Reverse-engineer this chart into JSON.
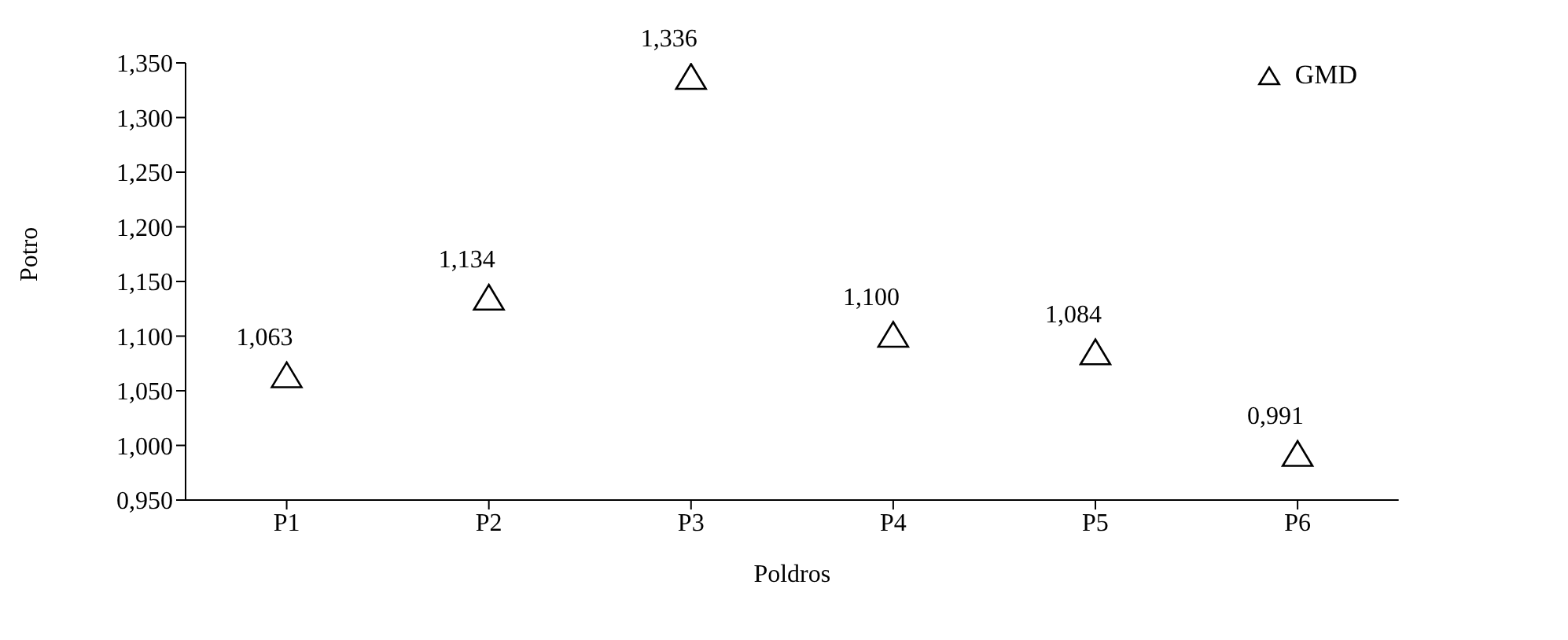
{
  "chart_data": {
    "type": "scatter",
    "xlabel": "Poldros",
    "ylabel": "Potro",
    "categories": [
      "P1",
      "P2",
      "P3",
      "P4",
      "P5",
      "P6"
    ],
    "series": [
      {
        "name": "GMD",
        "color": "#000000",
        "values": [
          1.063,
          1.134,
          1.336,
          1.1,
          1.084,
          0.991
        ],
        "value_labels": [
          "1,063",
          "1,134",
          "1,336",
          "1,100",
          "1,084",
          "0,991"
        ]
      }
    ],
    "ylim": [
      0.95,
      1.35
    ],
    "yticks": [
      {
        "value": 0.95,
        "label": "0,950"
      },
      {
        "value": 1.0,
        "label": "1,000"
      },
      {
        "value": 1.05,
        "label": "1,050"
      },
      {
        "value": 1.1,
        "label": "1,100"
      },
      {
        "value": 1.15,
        "label": "1,150"
      },
      {
        "value": 1.2,
        "label": "1,200"
      },
      {
        "value": 1.25,
        "label": "1,250"
      },
      {
        "value": 1.3,
        "label": "1,300"
      },
      {
        "value": 1.35,
        "label": "1,350"
      }
    ],
    "marker": "triangle",
    "grid": false,
    "legend": "top right"
  }
}
